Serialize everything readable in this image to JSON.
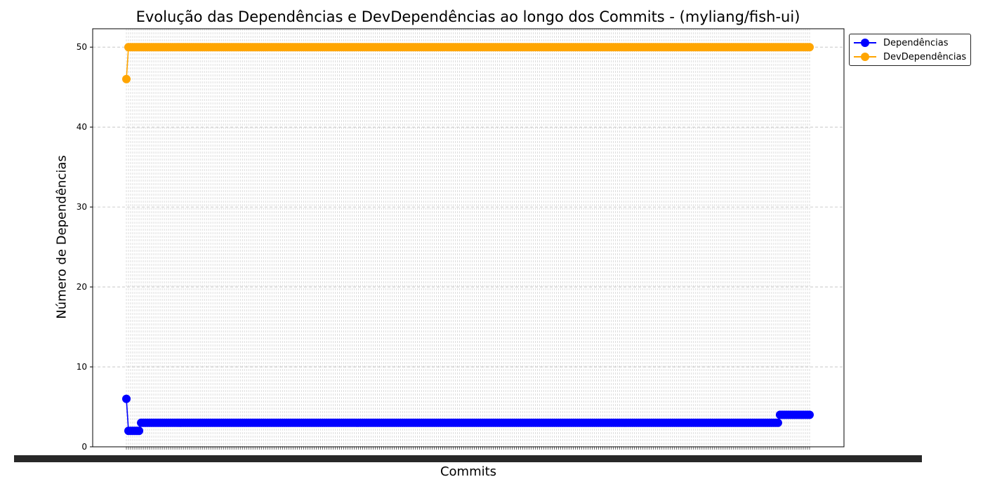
{
  "chart_data": {
    "type": "line",
    "title": "Evolução das Dependências e DevDependências ao longo dos Commits - (myliang/fish-ui)",
    "xlabel": "Commits",
    "ylabel": "Número de Dependências",
    "ylim": [
      0,
      52.3
    ],
    "y_ticks": [
      0,
      10,
      20,
      30,
      40,
      50
    ],
    "grid": true,
    "legend_position": "upper right, outside plot",
    "num_commits": 325,
    "x_tick_labels_note": "commit hash labels overlapping and illegible",
    "series": [
      {
        "name": "Dependências",
        "color": "#0000ff",
        "runs": [
          [
            1,
            6
          ],
          [
            6,
            2
          ],
          [
            303,
            3
          ],
          [
            15,
            4
          ]
        ]
      },
      {
        "name": "DevDependências",
        "color": "#ffa500",
        "runs": [
          [
            1,
            46
          ],
          [
            324,
            50
          ]
        ]
      }
    ]
  }
}
